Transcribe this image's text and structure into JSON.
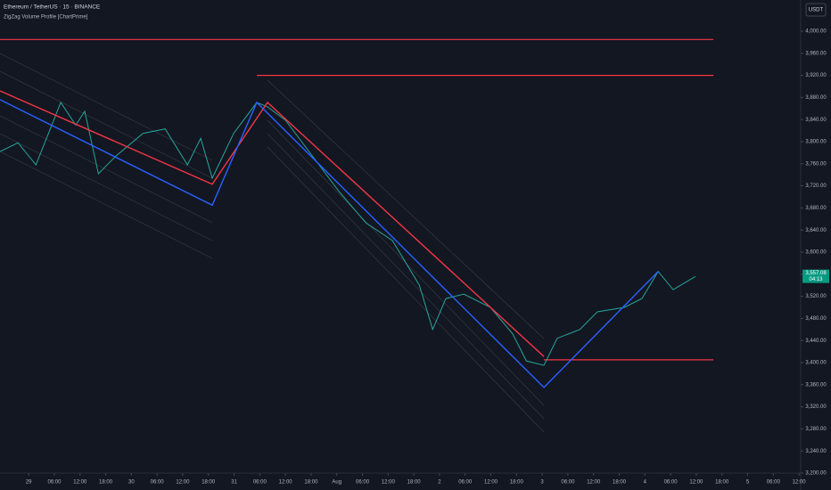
{
  "chart_data": {
    "type": "line",
    "title": "Ethereum / TetherUS · 15 · BINANCE",
    "subtitle": "ZigZag Volume Profile [ChartPrime]",
    "currency": "USDT",
    "x": [
      -6.7,
      -2.5,
      1.7,
      7.5,
      11,
      13.1,
      16.3,
      20.4,
      26.7,
      31.9,
      37.1,
      40.2,
      42.9,
      47.9,
      53.3,
      55.8,
      60,
      66.3,
      72.5,
      78.8,
      85,
      91.3,
      94.4,
      97.5,
      101.7,
      107.9,
      113.1,
      116.3,
      120.4,
      123.5,
      128.8,
      132.9,
      139.2,
      143.3,
      147.1,
      150.6,
      155.8
    ],
    "series": [
      {
        "color": "#26a69a",
        "values": [
          3782,
          3798,
          3758,
          3871,
          3830,
          3855,
          3742,
          3774,
          3815,
          3823,
          3758,
          3806,
          3734,
          3815,
          3871,
          3863,
          3839,
          3774,
          3710,
          3653,
          3621,
          3540,
          3460,
          3516,
          3524,
          3500,
          3452,
          3403,
          3395,
          3444,
          3460,
          3492,
          3500,
          3516,
          3565,
          3532,
          3556
        ]
      },
      {
        "color": "#f23645",
        "values": [
          3892,
          null,
          null,
          null,
          null,
          null,
          null,
          null,
          null,
          null,
          null,
          null,
          3723,
          null,
          null,
          3871,
          null,
          null,
          null,
          null,
          null,
          null,
          null,
          null,
          null,
          null,
          null,
          null,
          3411,
          null,
          null,
          null,
          null,
          null,
          null,
          null,
          null
        ]
      },
      {
        "color": "#2962ff",
        "values": [
          3876,
          null,
          null,
          null,
          null,
          null,
          null,
          null,
          null,
          null,
          null,
          null,
          3685,
          null,
          3871,
          null,
          null,
          null,
          null,
          null,
          null,
          null,
          null,
          null,
          null,
          null,
          null,
          null,
          3355,
          null,
          null,
          null,
          null,
          null,
          3565,
          null,
          null
        ]
      }
    ],
    "levels": [
      {
        "value": 3985,
        "x": [
          -6.7,
          160
        ],
        "color": "#f23645"
      },
      {
        "value": 3920,
        "x": [
          53.3,
          160
        ],
        "color": "#f23645"
      },
      {
        "value": 3405,
        "x": [
          120.4,
          160
        ],
        "color": "#f23645"
      }
    ],
    "last_price": {
      "value": 3557.08,
      "label": "3,557.08"
    },
    "countdown": "04:13",
    "xlim": [
      -6.7,
      180.4
    ],
    "xticks": [
      {
        "value": 0,
        "label": "29"
      },
      {
        "value": 6,
        "label": "06:00"
      },
      {
        "value": 12,
        "label": "12:00"
      },
      {
        "value": 18,
        "label": "18:00"
      },
      {
        "value": 24,
        "label": "30"
      },
      {
        "value": 30,
        "label": "06:00"
      },
      {
        "value": 36,
        "label": "12:00"
      },
      {
        "value": 42,
        "label": "18:00"
      },
      {
        "value": 48,
        "label": "31"
      },
      {
        "value": 54,
        "label": "06:00"
      },
      {
        "value": 60,
        "label": "12:00"
      },
      {
        "value": 66,
        "label": "18:00"
      },
      {
        "value": 72,
        "label": "Aug"
      },
      {
        "value": 78,
        "label": "06:00"
      },
      {
        "value": 84,
        "label": "12:00"
      },
      {
        "value": 90,
        "label": "18:00"
      },
      {
        "value": 96,
        "label": "2"
      },
      {
        "value": 102,
        "label": "06:00"
      },
      {
        "value": 108,
        "label": "12:00"
      },
      {
        "value": 114,
        "label": "18:00"
      },
      {
        "value": 120,
        "label": "3"
      },
      {
        "value": 126,
        "label": "06:00"
      },
      {
        "value": 132,
        "label": "12:00"
      },
      {
        "value": 138,
        "label": "18:00"
      },
      {
        "value": 144,
        "label": "4"
      },
      {
        "value": 150,
        "label": "06:00"
      },
      {
        "value": 156,
        "label": "12:00"
      },
      {
        "value": 162,
        "label": "18:00"
      },
      {
        "value": 168,
        "label": "5"
      },
      {
        "value": 174,
        "label": "06:00"
      },
      {
        "value": 180,
        "label": "12:00"
      }
    ],
    "ylim": [
      3200,
      4000
    ],
    "yticks": [
      {
        "value": 4000,
        "label": "4,000.00"
      },
      {
        "value": 3960,
        "label": "3,960.00"
      },
      {
        "value": 3920,
        "label": "3,920.00"
      },
      {
        "value": 3880,
        "label": "3,880.00"
      },
      {
        "value": 3840,
        "label": "3,840.00"
      },
      {
        "value": 3800,
        "label": "3,800.00"
      },
      {
        "value": 3760,
        "label": "3,760.00"
      },
      {
        "value": 3720,
        "label": "3,720.00"
      },
      {
        "value": 3680,
        "label": "3,680.00"
      },
      {
        "value": 3640,
        "label": "3,640.00"
      },
      {
        "value": 3600,
        "label": "3,600.00"
      },
      {
        "value": 3560,
        "label": "3,560.00"
      },
      {
        "value": 3520,
        "label": "3,520.00"
      },
      {
        "value": 3480,
        "label": "3,480.00"
      },
      {
        "value": 3440,
        "label": "3,440.00"
      },
      {
        "value": 3400,
        "label": "3,400.00"
      },
      {
        "value": 3360,
        "label": "3,360.00"
      },
      {
        "value": 3320,
        "label": "3,320.00"
      },
      {
        "value": 3280,
        "label": "3,280.00"
      },
      {
        "value": 3240,
        "label": "3,240.00"
      },
      {
        "value": 3200,
        "label": "3,200.00"
      }
    ],
    "grid": false
  }
}
